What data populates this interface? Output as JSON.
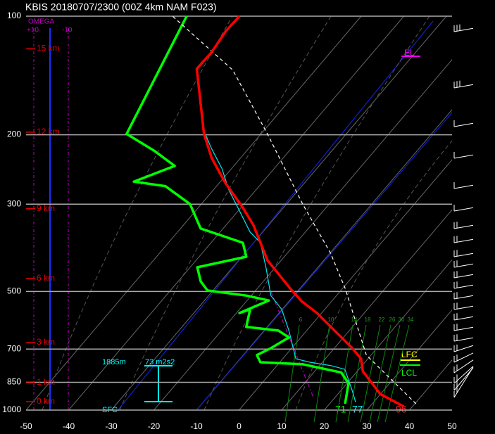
{
  "header": {
    "title": "KBIS   20180707/2300  (00Z  4km NAM  F023)"
  },
  "chart_data": {
    "type": "skewt",
    "plim": [
      100,
      1000
    ],
    "pticks": [
      100,
      200,
      300,
      500,
      700,
      850,
      1000
    ],
    "xlim": [
      -50,
      50
    ],
    "xticks": [
      -50,
      -40,
      -30,
      -20,
      -10,
      0,
      10,
      20,
      30,
      40,
      50
    ],
    "series": [
      {
        "color": "#00ff00",
        "skewed": false,
        "pressure": [
          964,
          855,
          803,
          765,
          756,
          725,
          696,
          654,
          628,
          615,
          555,
          567,
          527,
          512,
          497,
          471,
          434,
          408,
          376,
          346,
          300,
          270,
          263,
          240,
          220,
          199,
          100
        ],
        "values": [
          24.9,
          25.7,
          24.0,
          15.0,
          5.0,
          4.2,
          7.5,
          11.7,
          9.2,
          1.7,
          2.6,
          0.1,
          7.0,
          1.7,
          -7.4,
          -9.0,
          -9.8,
          1.7,
          0.9,
          -9.0,
          -11.5,
          -17.3,
          -24.7,
          -15.1,
          -19.8,
          -26.4,
          -12.3
        ]
      },
      {
        "color": "#ffffff",
        "skewed": true,
        "dashed": true,
        "pressure": [
          964,
          725,
          491,
          400,
          300,
          199,
          137,
          100
        ],
        "values": [
          40.3,
          18.9,
          0.6,
          -9.8,
          -26.2,
          -48.5,
          -69.4,
          -94.3
        ]
      },
      {
        "color": "#00e5ee",
        "skewed": true,
        "pressure": [
          955,
          891,
          788,
          771,
          756,
          741,
          628,
          555,
          512,
          434,
          376,
          353,
          312,
          276,
          244,
          216,
          199
        ],
        "values": [
          25.8,
          22.6,
          16.7,
          12.7,
          7.1,
          3.1,
          -4.2,
          -10.1,
          -15.4,
          -22.2,
          -28.4,
          -33.0,
          -39.7,
          -46.4,
          -52.2,
          -58.9,
          -63.1
        ]
      },
      {
        "color": "#ff0000",
        "skewed": true,
        "pressure": [
          979,
          910,
          797,
          741,
          694,
          628,
          567,
          529,
          491,
          417,
          339,
          306,
          265,
          229,
          199,
          158,
          136,
          124,
          109,
          100
        ],
        "values": [
          37.9,
          29.9,
          21.3,
          18.4,
          14.0,
          6.5,
          -1.1,
          -7.1,
          -12.3,
          -23.2,
          -33.6,
          -39.6,
          -48.6,
          -56.8,
          -63.4,
          -72.3,
          -78.1,
          -77.9,
          -78.8,
          -78.6
        ]
      }
    ],
    "heights": [
      {
        "label": "15 km",
        "pressure": 121
      },
      {
        "label": "12 km",
        "pressure": 197
      },
      {
        "label": "9 km",
        "pressure": 308
      },
      {
        "label": "6 km",
        "pressure": 463
      },
      {
        "label": "3 km",
        "pressure": 674
      },
      {
        "label": "1 km",
        "pressure": 852
      },
      {
        "label": "0 km",
        "pressure": 952
      }
    ],
    "mixing_ratio_labels": [
      6,
      10,
      14,
      18,
      22,
      26,
      30,
      34
    ],
    "omega": {
      "title": "OMEGA",
      "left": "+10",
      "right": "-10"
    },
    "levels": {
      "el": "EL",
      "lfc": "LFC",
      "lcl": "LCL"
    },
    "helicity": {
      "depth": "1885m",
      "value": "73 m2s2"
    },
    "sfc": "SFC",
    "surface": {
      "theta_e": 71,
      "dewpoint": 77,
      "temperature": 96
    }
  }
}
